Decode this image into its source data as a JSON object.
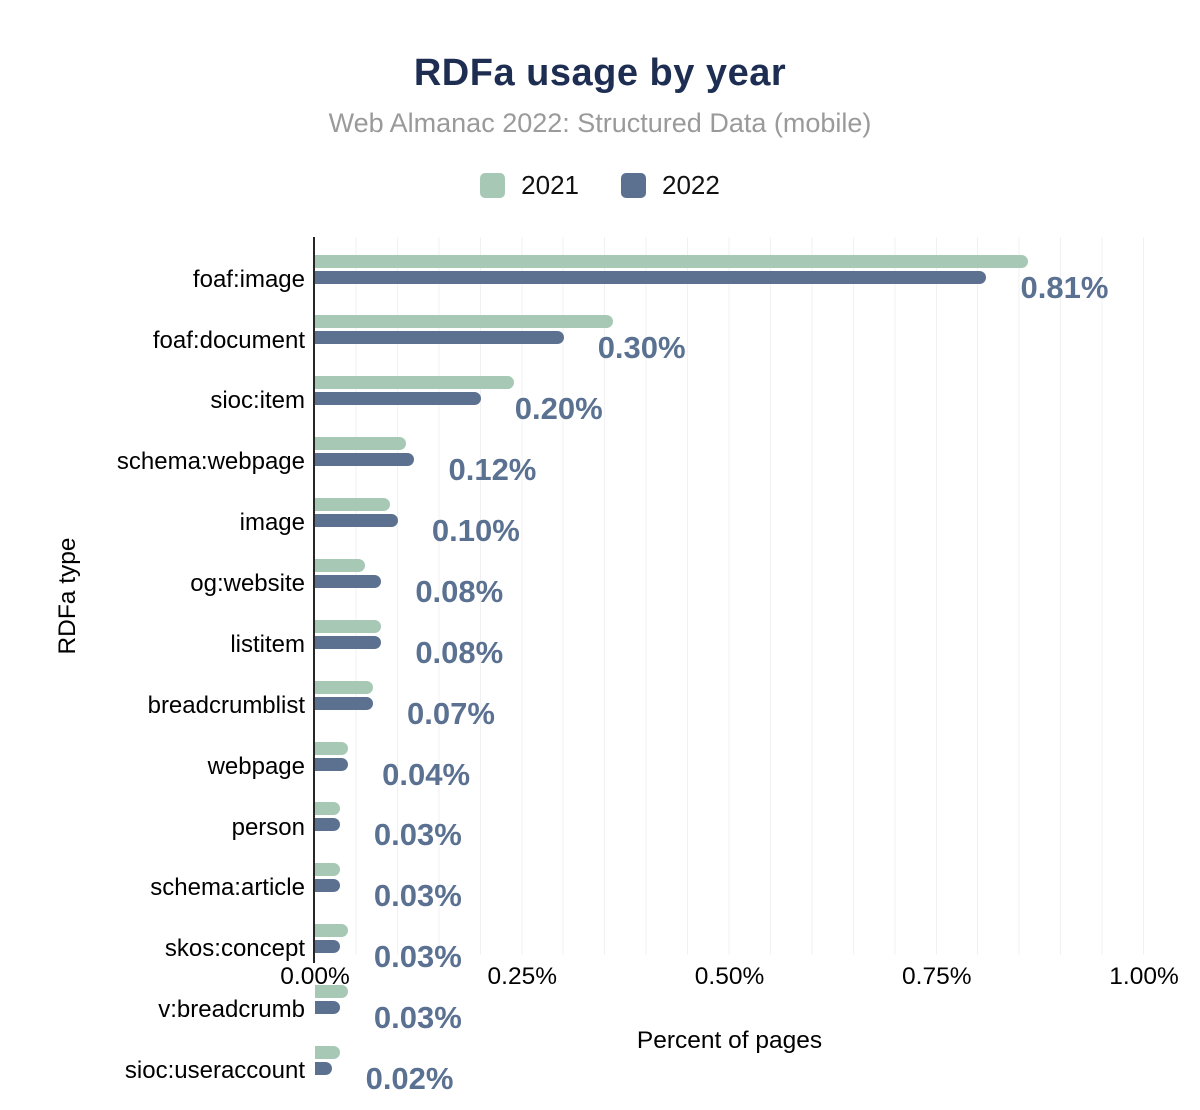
{
  "header": {
    "title": "RDFa usage by year",
    "subtitle": "Web Almanac 2022: Structured Data (mobile)"
  },
  "legend": {
    "items": [
      {
        "label": "2021",
        "color": "#a6c8b4"
      },
      {
        "label": "2022",
        "color": "#5c7190"
      }
    ]
  },
  "colors": {
    "title": "#1e2e52",
    "subtitle": "#9a9a9a",
    "series_2021": "#a6c8b4",
    "series_2022": "#5c7190",
    "value_label": "#5b7191",
    "axis_line": "#262626",
    "gridline": "#f1f1f1"
  },
  "chart_data": {
    "type": "bar",
    "orientation": "horizontal",
    "title": "RDFa usage by year",
    "subtitle": "Web Almanac 2022: Structured Data (mobile)",
    "xlabel": "Percent of pages",
    "ylabel": "RDFa type",
    "xlim": [
      0,
      1.0
    ],
    "x_ticks": [
      "0.00%",
      "0.25%",
      "0.50%",
      "0.75%",
      "1.00%"
    ],
    "x_tick_values": [
      0,
      0.25,
      0.5,
      0.75,
      1.0
    ],
    "grid": "vertical lines every 0.05%",
    "legend_position": "top",
    "categories": [
      "foaf:image",
      "foaf:document",
      "sioc:item",
      "schema:webpage",
      "image",
      "og:website",
      "listitem",
      "breadcrumblist",
      "webpage",
      "person",
      "schema:article",
      "skos:concept",
      "v:breadcrumb",
      "sioc:useraccount"
    ],
    "series": [
      {
        "name": "2021",
        "color": "#a6c8b4",
        "values": [
          0.86,
          0.36,
          0.24,
          0.11,
          0.09,
          0.06,
          0.08,
          0.07,
          0.04,
          0.03,
          0.03,
          0.04,
          0.04,
          0.03
        ]
      },
      {
        "name": "2022",
        "color": "#5c7190",
        "values": [
          0.81,
          0.3,
          0.2,
          0.12,
          0.1,
          0.08,
          0.08,
          0.07,
          0.04,
          0.03,
          0.03,
          0.03,
          0.03,
          0.02
        ]
      }
    ],
    "value_labels": [
      "0.81%",
      "0.30%",
      "0.20%",
      "0.12%",
      "0.10%",
      "0.08%",
      "0.08%",
      "0.07%",
      "0.04%",
      "0.03%",
      "0.03%",
      "0.03%",
      "0.03%",
      "0.02%"
    ],
    "value_labels_refer_to": "2022"
  }
}
